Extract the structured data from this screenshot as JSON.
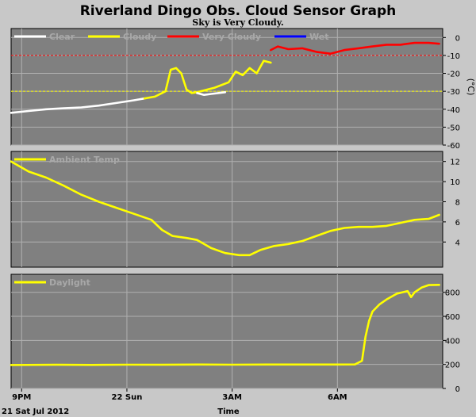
{
  "header": {
    "title": "Riverland Dingo Obs. Cloud Sensor Graph",
    "subtitle": "Sky is Very Cloudy."
  },
  "footer": {
    "date_label": "21 Sat Jul 2012",
    "time_label": "Time"
  },
  "x_axis": {
    "ticks": [
      {
        "hour": 0,
        "label": "9PM"
      },
      {
        "hour": 3,
        "label": "22 Sun"
      },
      {
        "hour": 6,
        "label": "3AM"
      },
      {
        "hour": 9,
        "label": "6AM"
      }
    ],
    "range": [
      -0.3,
      12.0
    ]
  },
  "colors": {
    "panel_bg": "#808080",
    "page_bg": "#c8c8c8",
    "clear": "#ffffff",
    "cloudy": "#ffff00",
    "very_cloudy": "#ff0000",
    "wet": "#0000ff",
    "threshold_line": "#ff0000",
    "threshold_line2": "#ffff00"
  },
  "chart_data": [
    {
      "type": "line",
      "legend_placement": "top-left",
      "legend": [
        {
          "name": "Clear",
          "color": "#ffffff"
        },
        {
          "name": "Cloudy",
          "color": "#ffff00"
        },
        {
          "name": "Very Cloudy",
          "color": "#ff0000"
        },
        {
          "name": "Wet",
          "color": "#0000ff"
        }
      ],
      "ylabel": "(°C)",
      "ylim": [
        -60,
        5
      ],
      "yticks": [
        0,
        -10,
        -20,
        -30,
        -40,
        -50,
        -60
      ],
      "reference_lines": [
        {
          "y": -10,
          "color": "#ff0000"
        },
        {
          "y": -30,
          "color": "#ffff00"
        }
      ],
      "series": [
        {
          "name": "Clear",
          "color": "#ffffff",
          "x": [
            -0.3,
            0.2,
            0.7,
            1.2,
            1.7,
            2.2,
            2.7,
            3.2,
            3.5
          ],
          "y": [
            -42,
            -41,
            -40,
            -39.5,
            -39,
            -38,
            -36.5,
            -35,
            -34
          ]
        },
        {
          "name": "Cloudy",
          "color": "#ffff00",
          "x": [
            3.5,
            3.8,
            4.1,
            4.25,
            4.4,
            4.55,
            4.7,
            4.85,
            5.0,
            5.5,
            5.9,
            6.1,
            6.3,
            6.5,
            6.7,
            6.9,
            7.1
          ],
          "y": [
            -34,
            -33,
            -30,
            -18,
            -17,
            -20,
            -29,
            -31,
            -30.5,
            -28,
            -25,
            -19,
            -21,
            -17,
            -20,
            -13,
            -14
          ]
        },
        {
          "name": "Clear",
          "color": "#ffffff",
          "x": [
            5.0,
            5.2,
            5.4,
            5.6,
            5.8
          ],
          "y": [
            -31,
            -32,
            -31.5,
            -31,
            -30.5
          ]
        },
        {
          "name": "Very Cloudy",
          "color": "#ff0000",
          "x": [
            7.1,
            7.3,
            7.6,
            8.0,
            8.4,
            8.8,
            9.2,
            9.6,
            10.0,
            10.4,
            10.8,
            11.2,
            11.6,
            11.9
          ],
          "y": [
            -7,
            -5,
            -6.5,
            -6,
            -8,
            -9,
            -7,
            -6,
            -5,
            -4,
            -4,
            -3,
            -3,
            -3.5
          ]
        }
      ]
    },
    {
      "type": "line",
      "legend_placement": "top-left",
      "legend": [
        {
          "name": "Ambient Temp",
          "color": "#ffff00"
        }
      ],
      "ylim": [
        1.5,
        13.0
      ],
      "yticks": [
        12,
        10,
        8,
        6,
        4
      ],
      "series": [
        {
          "name": "Ambient Temp",
          "color": "#ffff00",
          "x": [
            -0.3,
            0.2,
            0.7,
            1.2,
            1.7,
            2.2,
            2.7,
            3.2,
            3.7,
            4.0,
            4.3,
            4.7,
            5.0,
            5.4,
            5.8,
            6.2,
            6.5,
            6.8,
            7.2,
            7.6,
            8.0,
            8.4,
            8.8,
            9.2,
            9.6,
            10.0,
            10.4,
            10.8,
            11.2,
            11.6,
            11.9
          ],
          "y": [
            12.0,
            11.0,
            10.4,
            9.6,
            8.7,
            8.0,
            7.4,
            6.8,
            6.2,
            5.2,
            4.6,
            4.4,
            4.2,
            3.4,
            2.9,
            2.7,
            2.7,
            3.2,
            3.6,
            3.8,
            4.1,
            4.6,
            5.1,
            5.4,
            5.5,
            5.5,
            5.6,
            5.9,
            6.2,
            6.3,
            6.7
          ]
        }
      ]
    },
    {
      "type": "line",
      "legend_placement": "top-left",
      "legend": [
        {
          "name": "Daylight",
          "color": "#ffff00"
        }
      ],
      "ylim": [
        0,
        950
      ],
      "yticks": [
        800,
        600,
        400,
        200,
        0
      ],
      "series": [
        {
          "name": "Daylight",
          "color": "#ffff00",
          "x": [
            -0.3,
            1,
            2,
            3,
            4,
            5,
            6,
            7,
            8,
            9,
            9.5,
            9.7,
            9.8,
            9.9,
            10.0,
            10.2,
            10.4,
            10.7,
            11.0,
            11.1,
            11.2,
            11.4,
            11.6,
            11.9
          ],
          "y": [
            195,
            197,
            196,
            198,
            197,
            199,
            198,
            199,
            199,
            199,
            200,
            230,
            430,
            560,
            640,
            700,
            740,
            790,
            810,
            760,
            800,
            840,
            860,
            862
          ]
        }
      ]
    }
  ]
}
